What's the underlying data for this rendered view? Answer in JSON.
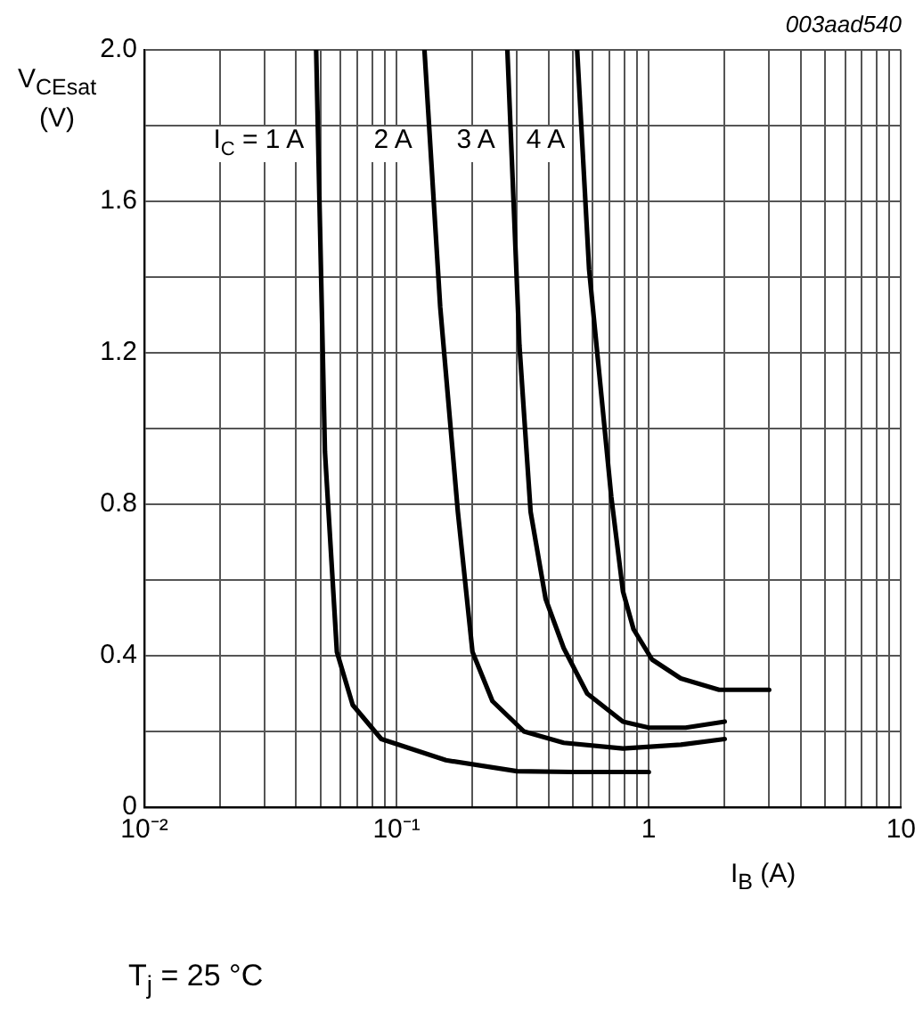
{
  "chart_data": {
    "type": "line",
    "ylabel": "V$_{CEsat}$ (V)",
    "xlabel": "I$_{B}$ (A)",
    "log": "x",
    "grid": true,
    "legend": false,
    "marker": "none",
    "line_style": "solid",
    "annotations": [
      "003aad540",
      "T$_{j}$ = 25 °C"
    ],
    "xlim": [
      0.01,
      10
    ],
    "xticks": [
      {
        "value": 0.01,
        "label": "10⁻²"
      },
      {
        "value": 0.02,
        "label": null
      },
      {
        "value": 0.03,
        "label": null
      },
      {
        "value": 0.04,
        "label": null
      },
      {
        "value": 0.05,
        "label": null
      },
      {
        "value": 0.06,
        "label": null
      },
      {
        "value": 0.07,
        "label": null
      },
      {
        "value": 0.08,
        "label": null
      },
      {
        "value": 0.09,
        "label": null
      },
      {
        "value": 0.1,
        "label": "10⁻¹"
      },
      {
        "value": 0.2,
        "label": null
      },
      {
        "value": 0.3,
        "label": null
      },
      {
        "value": 0.4,
        "label": null
      },
      {
        "value": 0.5,
        "label": null
      },
      {
        "value": 0.6,
        "label": null
      },
      {
        "value": 0.7,
        "label": null
      },
      {
        "value": 0.8,
        "label": null
      },
      {
        "value": 0.9,
        "label": null
      },
      1,
      {
        "value": 2,
        "label": null
      },
      {
        "value": 3,
        "label": null
      },
      {
        "value": 4,
        "label": null
      },
      {
        "value": 5,
        "label": null
      },
      {
        "value": 6,
        "label": null
      },
      {
        "value": 7,
        "label": null
      },
      {
        "value": 8,
        "label": null
      },
      {
        "value": 9,
        "label": null
      },
      10
    ],
    "ylim": [
      0,
      2
    ],
    "yticks": [
      0,
      {
        "value": 0.2,
        "label": null
      },
      0.4,
      {
        "value": 0.6,
        "label": null
      },
      0.8,
      {
        "value": 1,
        "label": null
      },
      1.2,
      {
        "value": 1.4,
        "label": null
      },
      1.6,
      {
        "value": 1.8,
        "label": null
      },
      {
        "value": 2,
        "label": "2.0"
      }
    ],
    "series": [
      {
        "name": "I$_{C}$ = 1 A",
        "color": "#000000",
        "x": [
          0.048,
          0.052,
          0.058,
          0.067,
          0.087,
          0.157,
          0.3,
          0.5,
          1
        ],
        "values": [
          2.0,
          0.94,
          0.41,
          0.27,
          0.18,
          0.124,
          0.095,
          0.093,
          0.093
        ]
      },
      {
        "name": "2 A",
        "color": "#000000",
        "x": [
          0.129,
          0.149,
          0.175,
          0.2,
          0.24,
          0.32,
          0.46,
          0.79,
          1.34,
          2
        ],
        "values": [
          2.0,
          1.32,
          0.78,
          0.41,
          0.28,
          0.2,
          0.17,
          0.155,
          0.165,
          0.18
        ]
      },
      {
        "name": "3 A",
        "color": "#000000",
        "x": [
          0.275,
          0.307,
          0.34,
          0.39,
          0.46,
          0.57,
          0.79,
          1,
          1.4,
          2
        ],
        "values": [
          2.0,
          1.22,
          0.78,
          0.55,
          0.42,
          0.3,
          0.226,
          0.21,
          0.21,
          0.226
        ]
      },
      {
        "name": "4 A",
        "color": "#000000",
        "x": [
          0.52,
          0.58,
          0.71,
          0.79,
          0.87,
          1.03,
          1.34,
          1.9,
          3
        ],
        "values": [
          2.0,
          1.42,
          0.82,
          0.57,
          0.47,
          0.39,
          0.34,
          0.31,
          0.31
        ]
      }
    ]
  }
}
